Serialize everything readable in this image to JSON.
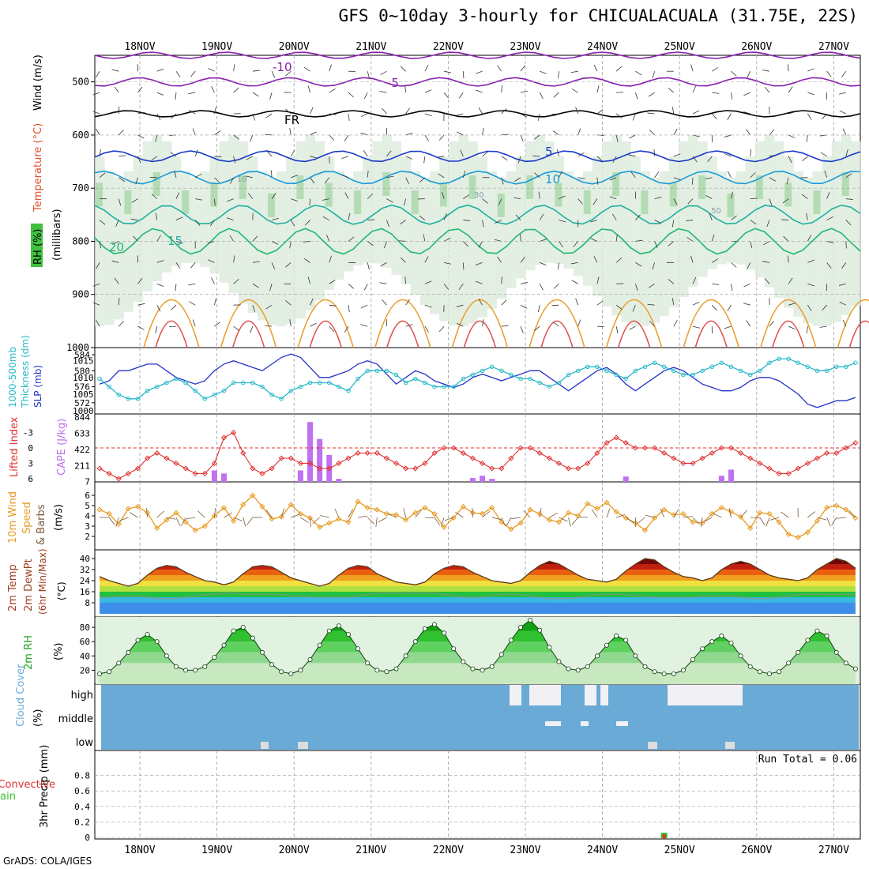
{
  "title": "GFS 0~10day 3-hourly for CHICUALACUALA (31.75E, 22S)",
  "footer": "GrADS: COLA/IGES",
  "colors": {
    "axis": "#000000",
    "grid": "#a0a0a0",
    "slp": "#2433c8",
    "thickness": "#26b8c8",
    "lifted_index": "#e03030",
    "cape": "#c070f0",
    "wind": "#e89a20",
    "barb": "#7a5a3a",
    "rh": "#20c020",
    "cloud": "#6aaad6",
    "cloud_cover": "#f0f0f5",
    "rain": "#30c030",
    "convective": "#e03030"
  },
  "chart_data": {
    "time_axis": {
      "labels": [
        "18NOV",
        "19NOV",
        "20NOV",
        "21NOV",
        "22NOV",
        "23NOV",
        "24NOV",
        "25NOV",
        "26NOV",
        "27NOV"
      ],
      "steps": 80,
      "step_hours": 3
    },
    "panels": [
      {
        "id": "upper-air",
        "type": "heatmap",
        "ylabel": [
          "RH (%)",
          "Temperature (°C)",
          "Wind (m/s)"
        ],
        "ylabel_units": "(millibars)",
        "y_ticks": [
          500,
          600,
          700,
          800,
          900,
          1000
        ],
        "ylim": [
          1000,
          450
        ],
        "isotherm_labels": [
          "-10",
          "-5",
          "FR",
          "5",
          "10",
          "15",
          "20"
        ],
        "rh_labels": [
          "10",
          "30",
          "50"
        ]
      },
      {
        "id": "slp-thickness",
        "type": "line",
        "ylabel": [
          "1000-500mb",
          "Thickness (dm)",
          "SLP (mb)"
        ],
        "left_ticks": [
          "572",
          "576",
          "580",
          "584"
        ],
        "right_ticks": [
          "1000",
          "1005",
          "1010",
          "1015"
        ],
        "series": [
          {
            "name": "SLP (mb)",
            "values": [
              1008,
              1009,
              1012,
              1012,
              1013,
              1014,
              1014,
              1012,
              1010,
              1009,
              1008,
              1009,
              1012,
              1014,
              1015,
              1014,
              1013,
              1012,
              1014,
              1016,
              1017,
              1016,
              1013,
              1010,
              1010,
              1011,
              1012,
              1014,
              1015,
              1014,
              1011,
              1008,
              1010,
              1012,
              1011,
              1009,
              1008,
              1007,
              1008,
              1010,
              1011,
              1010,
              1009,
              1010,
              1011,
              1012,
              1012,
              1010,
              1008,
              1006,
              1008,
              1010,
              1012,
              1013,
              1011,
              1008,
              1006,
              1008,
              1010,
              1012,
              1013,
              1012,
              1010,
              1008,
              1007,
              1006,
              1006,
              1007,
              1009,
              1010,
              1010,
              1009,
              1007,
              1005,
              1002,
              1001,
              1002,
              1003,
              1003,
              1004
            ]
          },
          {
            "name": "Thickness (dm)",
            "values": [
              578,
              576,
              574,
              573,
              573,
              575,
              576,
              577,
              578,
              577,
              575,
              573,
              574,
              575,
              577,
              577,
              577,
              576,
              574,
              573,
              575,
              576,
              577,
              577,
              577,
              576,
              575,
              578,
              580,
              580,
              580,
              579,
              577,
              578,
              577,
              576,
              576,
              576,
              578,
              579,
              580,
              581,
              580,
              579,
              578,
              578,
              577,
              576,
              577,
              579,
              580,
              581,
              581,
              580,
              579,
              578,
              580,
              581,
              582,
              581,
              580,
              579,
              579,
              580,
              581,
              582,
              581,
              580,
              579,
              580,
              582,
              583,
              583,
              582,
              581,
              580,
              580,
              581,
              581,
              582
            ]
          }
        ]
      },
      {
        "id": "lifted-cape",
        "type": "bar",
        "ylabel": [
          "Lifted Index",
          "CAPE (J/kg)"
        ],
        "left_ticks": [
          "-3",
          "0",
          "3",
          "6"
        ],
        "right_ticks": [
          "7",
          "211",
          "422",
          "633",
          "844"
        ],
        "series": [
          {
            "name": "Lifted Index",
            "values": [
              4,
              5,
              6,
              5,
              4,
              2,
              1,
              2,
              3,
              4,
              5,
              5,
              3,
              -2,
              -3,
              1,
              4,
              5,
              4,
              2,
              2,
              3,
              3,
              4,
              4,
              3,
              2,
              1,
              1,
              1,
              2,
              3,
              4,
              4,
              3,
              1,
              0,
              0,
              1,
              2,
              3,
              4,
              4,
              2,
              0,
              0,
              1,
              2,
              3,
              4,
              4,
              3,
              1,
              -1,
              -2,
              -1,
              0,
              0,
              0,
              1,
              2,
              3,
              3,
              2,
              1,
              0,
              0,
              1,
              2,
              3,
              4,
              5,
              5,
              4,
              3,
              2,
              1,
              1,
              0,
              -1
            ]
          },
          {
            "name": "CAPE (J/kg)",
            "values": [
              0,
              0,
              0,
              0,
              0,
              0,
              0,
              0,
              0,
              0,
              0,
              0,
              150,
              110,
              0,
              0,
              0,
              0,
              0,
              0,
              0,
              150,
              780,
              560,
              350,
              40,
              0,
              0,
              0,
              0,
              0,
              0,
              0,
              0,
              0,
              0,
              0,
              0,
              0,
              50,
              80,
              40,
              0,
              0,
              0,
              0,
              0,
              0,
              0,
              0,
              0,
              0,
              0,
              0,
              0,
              70,
              0,
              0,
              0,
              0,
              0,
              0,
              0,
              0,
              0,
              80,
              160,
              0,
              0,
              0,
              0,
              0,
              0,
              0,
              0,
              0,
              0,
              0,
              0,
              0
            ]
          }
        ]
      },
      {
        "id": "wind",
        "type": "line",
        "ylabel": [
          "10m Wind",
          "Speed",
          "& Barbs"
        ],
        "ylabel_units": "(m/s)",
        "left_ticks": [
          "2",
          "3",
          "4",
          "5",
          "6"
        ],
        "ylim": [
          1,
          7
        ],
        "series": [
          {
            "name": "10m Wind Speed",
            "values": [
              4.6,
              4.2,
              3.2,
              4.7,
              4.9,
              4.3,
              2.8,
              3.6,
              4.3,
              3.4,
              2.6,
              3.0,
              4.0,
              4.8,
              3.5,
              5.1,
              6.0,
              4.9,
              3.7,
              3.9,
              5.1,
              4.2,
              3.8,
              2.9,
              3.3,
              3.7,
              3.4,
              5.4,
              4.8,
              4.6,
              4.2,
              4.1,
              3.6,
              4.3,
              4.8,
              4.2,
              2.9,
              3.8,
              4.9,
              4.3,
              4.2,
              4.8,
              3.4,
              2.7,
              3.3,
              4.6,
              4.2,
              3.6,
              3.4,
              4.3,
              4.0,
              5.2,
              4.7,
              5.3,
              4.4,
              3.8,
              3.3,
              2.6,
              3.8,
              4.6,
              4.1,
              4.2,
              3.4,
              3.3,
              4.2,
              4.8,
              4.4,
              3.9,
              2.8,
              4.3,
              4.2,
              3.4,
              2.2,
              1.9,
              2.4,
              3.5,
              4.8,
              5.0,
              4.6,
              3.8
            ]
          }
        ]
      },
      {
        "id": "temp",
        "type": "area",
        "ylabel": [
          "2m Temp",
          "2m DewPt",
          "(6hr Min/Max)"
        ],
        "ylabel_units": "(°C)",
        "left_ticks": [
          "8",
          "16",
          "24",
          "32",
          "40"
        ],
        "ylim": [
          0,
          44
        ],
        "series": [
          {
            "name": "2m Temp",
            "values": [
              27,
              24,
              22,
              20,
              22,
              28,
              33,
              35,
              34,
              30,
              27,
              24,
              23,
              21,
              23,
              29,
              34,
              35,
              34,
              30,
              26,
              24,
              22,
              20,
              22,
              28,
              33,
              35,
              34,
              29,
              26,
              23,
              22,
              21,
              23,
              29,
              33,
              35,
              34,
              30,
              27,
              24,
              23,
              22,
              24,
              30,
              35,
              38,
              36,
              32,
              28,
              25,
              24,
              23,
              25,
              31,
              36,
              40,
              39,
              34,
              30,
              27,
              26,
              24,
              26,
              32,
              36,
              38,
              36,
              32,
              28,
              26,
              25,
              24,
              26,
              32,
              36,
              40,
              38,
              33
            ]
          },
          {
            "name": "2m DewPt",
            "values": [
              12,
              12,
              13,
              13,
              13,
              12,
              11,
              11,
              11,
              12,
              13,
              14,
              14,
              15,
              15,
              14,
              14,
              14,
              14,
              14,
              13,
              13,
              12,
              12,
              12,
              12,
              12,
              13,
              14,
              15,
              15,
              15,
              15,
              15,
              15,
              15,
              14,
              13,
              12,
              12,
              12,
              13,
              14,
              14,
              14,
              13,
              12,
              11,
              11,
              11,
              12,
              13,
              14,
              14,
              14,
              14,
              13,
              13,
              12,
              12,
              12,
              12,
              12,
              13,
              13,
              13,
              13,
              12,
              11,
              11,
              11,
              12,
              13,
              14,
              14,
              14,
              14,
              14,
              14,
              14
            ]
          }
        ]
      },
      {
        "id": "rh",
        "type": "area",
        "ylabel": [
          "2m RH"
        ],
        "ylabel_units": "(%)",
        "left_ticks": [
          "20",
          "40",
          "60",
          "80"
        ],
        "ylim": [
          5,
          90
        ],
        "series": [
          {
            "name": "2m RH",
            "values": [
              15,
              18,
              30,
              45,
              62,
              70,
              60,
              40,
              25,
              20,
              20,
              25,
              38,
              55,
              75,
              80,
              65,
              45,
              28,
              18,
              15,
              20,
              35,
              55,
              75,
              82,
              70,
              50,
              30,
              20,
              18,
              22,
              40,
              60,
              78,
              84,
              72,
              50,
              32,
              22,
              20,
              25,
              42,
              62,
              80,
              90,
              76,
              52,
              32,
              22,
              20,
              25,
              40,
              55,
              68,
              62,
              40,
              25,
              18,
              15,
              15,
              20,
              35,
              50,
              60,
              68,
              58,
              40,
              25,
              18,
              15,
              18,
              30,
              45,
              62,
              75,
              68,
              45,
              30,
              22
            ]
          }
        ]
      },
      {
        "id": "cloud",
        "type": "table",
        "ylabel": [
          "Cloud Cover"
        ],
        "ylabel_units": "(%)",
        "levels": [
          "high",
          "middle",
          "low"
        ]
      },
      {
        "id": "precip",
        "type": "bar",
        "ylabel": [
          "Total / Rain",
          "Convective"
        ],
        "ylabel_units": "3hr Precip (mm)",
        "left_ticks": [
          "0",
          "0.2",
          "0.4",
          "0.6",
          "0.8"
        ],
        "ylim": [
          0,
          1
        ],
        "note": "Run Total = 0.06",
        "series": [
          {
            "name": "Total / Rain",
            "values": [
              0,
              0,
              0,
              0,
              0,
              0,
              0,
              0,
              0,
              0,
              0,
              0,
              0,
              0,
              0,
              0,
              0,
              0,
              0,
              0,
              0,
              0,
              0,
              0,
              0,
              0,
              0,
              0,
              0,
              0,
              0,
              0,
              0,
              0,
              0,
              0,
              0,
              0,
              0,
              0,
              0,
              0,
              0,
              0,
              0,
              0,
              0,
              0,
              0,
              0,
              0,
              0,
              0,
              0,
              0,
              0,
              0,
              0,
              0,
              0.06,
              0,
              0,
              0,
              0,
              0,
              0,
              0,
              0,
              0,
              0,
              0,
              0,
              0,
              0,
              0,
              0,
              0,
              0,
              0,
              0
            ]
          },
          {
            "name": "Convective",
            "values": [
              0,
              0,
              0,
              0,
              0,
              0,
              0,
              0,
              0,
              0,
              0,
              0,
              0,
              0,
              0,
              0,
              0,
              0,
              0,
              0,
              0,
              0,
              0,
              0,
              0,
              0,
              0,
              0,
              0,
              0,
              0,
              0,
              0,
              0,
              0,
              0,
              0,
              0,
              0,
              0,
              0,
              0,
              0,
              0,
              0,
              0,
              0,
              0,
              0,
              0,
              0,
              0,
              0,
              0,
              0,
              0,
              0,
              0,
              0,
              0.04,
              0,
              0,
              0,
              0,
              0,
              0,
              0,
              0,
              0,
              0,
              0,
              0,
              0,
              0,
              0,
              0,
              0,
              0,
              0,
              0
            ]
          }
        ]
      }
    ]
  }
}
